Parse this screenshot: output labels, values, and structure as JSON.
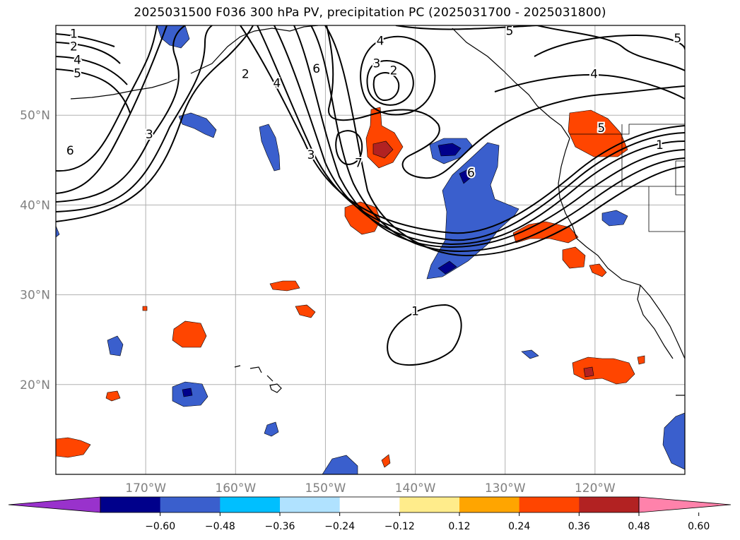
{
  "title": "2025031500 F036 300 hPa PV, precipitation PC (2025031700 - 2025031800)",
  "map": {
    "lon_range": [
      -180,
      -110
    ],
    "lat_range": [
      10,
      60
    ],
    "lon_ticks": [
      {
        "lon": -170,
        "label": "170°W"
      },
      {
        "lon": -160,
        "label": "160°W"
      },
      {
        "lon": -150,
        "label": "150°W"
      },
      {
        "lon": -140,
        "label": "140°W"
      },
      {
        "lon": -130,
        "label": "130°W"
      },
      {
        "lon": -120,
        "label": "120°W"
      }
    ],
    "lat_ticks": [
      {
        "lat": 20,
        "label": "20°N"
      },
      {
        "lat": 30,
        "label": "30°N"
      },
      {
        "lat": 40,
        "label": "40°N"
      },
      {
        "lat": 50,
        "label": "50°N"
      }
    ],
    "tick_label_color": "#808080",
    "grid": true,
    "contour_labels": [
      {
        "text": "1",
        "lon": -178.0,
        "lat": 59.1
      },
      {
        "text": "2",
        "lon": -178.0,
        "lat": 57.7
      },
      {
        "text": "4",
        "lon": -177.6,
        "lat": 56.2
      },
      {
        "text": "5",
        "lon": -177.6,
        "lat": 54.7
      },
      {
        "text": "2",
        "lon": -158.9,
        "lat": 54.6
      },
      {
        "text": "4",
        "lon": -155.4,
        "lat": 53.6
      },
      {
        "text": "6",
        "lon": -151.0,
        "lat": 55.2
      },
      {
        "text": "4",
        "lon": -143.9,
        "lat": 58.3
      },
      {
        "text": "3",
        "lon": -144.3,
        "lat": 55.8
      },
      {
        "text": "2",
        "lon": -142.4,
        "lat": 55.0
      },
      {
        "text": "5",
        "lon": -129.5,
        "lat": 59.4
      },
      {
        "text": "5",
        "lon": -110.8,
        "lat": 58.6
      },
      {
        "text": "4",
        "lon": -120.1,
        "lat": 54.6
      },
      {
        "text": "3",
        "lon": -169.6,
        "lat": 47.9
      },
      {
        "text": "6",
        "lon": -178.4,
        "lat": 46.1
      },
      {
        "text": "3",
        "lon": -151.6,
        "lat": 45.6
      },
      {
        "text": "7",
        "lon": -146.3,
        "lat": 44.7
      },
      {
        "text": "6",
        "lon": -133.8,
        "lat": 43.6
      },
      {
        "text": "5",
        "lon": -119.3,
        "lat": 48.6
      },
      {
        "text": "1",
        "lon": -112.8,
        "lat": 46.7
      },
      {
        "text": "1",
        "lon": -140.0,
        "lat": 28.2
      }
    ]
  },
  "colorbar": {
    "colors": [
      "#9932cc",
      "#00008b",
      "#3a5fcd",
      "#00bfff",
      "#b0e2ff",
      "#ffffff",
      "#ffec8b",
      "#ffa500",
      "#ff4500",
      "#b22222",
      "#ff82ab"
    ],
    "tick_labels": [
      "−0.60",
      "−0.48",
      "−0.36",
      "−0.24",
      "−0.12",
      "0.12",
      "0.24",
      "0.36",
      "0.48",
      "0.60"
    ]
  }
}
